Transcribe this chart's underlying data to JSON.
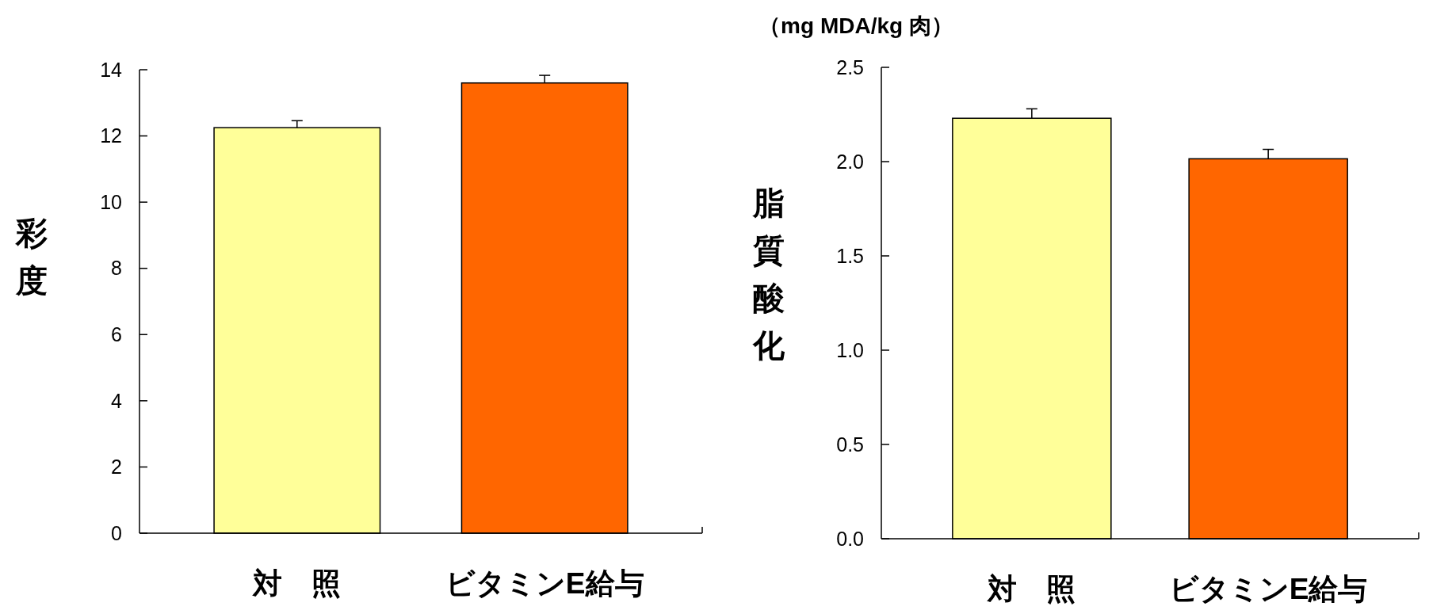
{
  "chart_data": [
    {
      "type": "bar",
      "ylabel": "彩度",
      "categories": [
        "対　照",
        "ビタミンE給与"
      ],
      "values": [
        12.25,
        13.6
      ],
      "errors": [
        0.21,
        0.23
      ],
      "colors": [
        "#ffff99",
        "#ff6600"
      ],
      "ylim": [
        0,
        14
      ],
      "yticks": [
        0,
        2,
        4,
        6,
        8,
        10,
        12,
        14
      ]
    },
    {
      "type": "bar",
      "ylabel": "脂質酸化",
      "annotations": [
        "（mg MDA/kg 肉）"
      ],
      "categories": [
        "対　照",
        "ビタミンE給与"
      ],
      "values": [
        2.23,
        2.015
      ],
      "errors": [
        0.05,
        0.05
      ],
      "colors": [
        "#ffff99",
        "#ff6600"
      ],
      "ylim": [
        0,
        2.5
      ],
      "yticks": [
        {
          "value": 0,
          "label": "0.0"
        },
        {
          "value": 0.5,
          "label": "0.5"
        },
        {
          "value": 1,
          "label": "1.0"
        },
        {
          "value": 1.5,
          "label": "1.5"
        },
        {
          "value": 2,
          "label": "2.0"
        },
        {
          "value": 2.5,
          "label": "2.5"
        }
      ]
    }
  ]
}
